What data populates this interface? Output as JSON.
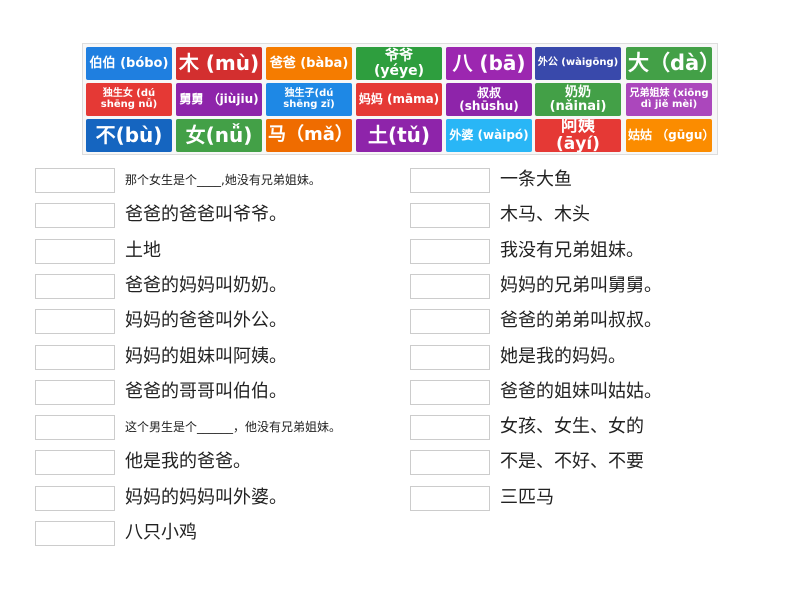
{
  "tiles": {
    "rows": [
      [
        "伯伯 (bóbo)",
        "木 (mù)",
        "爸爸 (bàba)",
        "爷爷 (yéye)",
        "八 (bā)",
        "外公 (wàigōng)",
        "大（dà）"
      ],
      [
        "独生女 (dú shēng nǚ)",
        "舅舅 （jiùjiu)",
        "独生子(dú shēng zǐ)",
        "妈妈 (māma)",
        "叔叔 (shūshu)",
        "奶奶 (nǎinai)",
        "兄弟姐妹 (xiōng dì jiě mèi)"
      ],
      [
        "不(bù)",
        "女(nǚ)",
        "马（mǎ）",
        "土(tǔ)",
        "外婆 (wàipó)",
        "阿姨 (āyí)",
        "姑姑 （gūgu）"
      ]
    ]
  },
  "questions": {
    "left": [
      "那个女生是个____,她没有兄弟姐妹。",
      "爸爸的爸爸叫爷爷。",
      "土地",
      "爸爸的妈妈叫奶奶。",
      "妈妈的爸爸叫外公。",
      "妈妈的姐妹叫阿姨。",
      "爸爸的哥哥叫伯伯。",
      "这个男生是个______，他没有兄弟姐妹。",
      "他是我的爸爸。",
      "妈妈的妈妈叫外婆。",
      "八只小鸡"
    ],
    "right": [
      "一条大鱼",
      "木马、木头",
      "我没有兄弟姐妹。",
      "妈妈的兄弟叫舅舅。",
      "爸爸的弟弟叫叔叔。",
      "她是我的妈妈。",
      "爸爸的姐妹叫姑姑。",
      "女孩、女生、女的",
      "不是、不好、不要",
      "三匹马"
    ]
  }
}
